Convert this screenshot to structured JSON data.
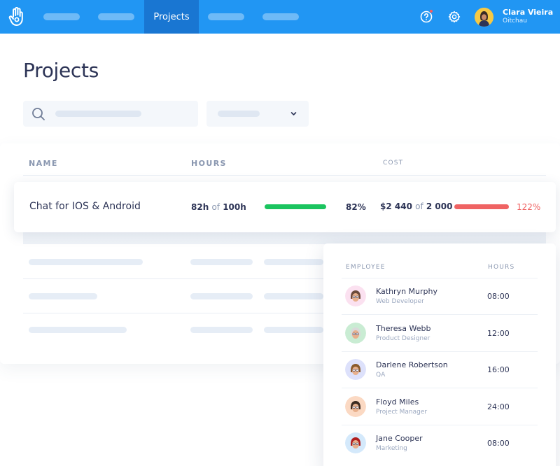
{
  "nav": {
    "active_tab": "Projects",
    "user": {
      "name": "Clara Vieira",
      "org": "Oitchau"
    }
  },
  "page": {
    "title": "Projects"
  },
  "table": {
    "headers": {
      "name": "NAME",
      "hours": "HOURS",
      "cost": "COST"
    },
    "project": {
      "name": "Chat for IOS & Android",
      "hours_used": "82h",
      "of_label": "of",
      "hours_total": "100h",
      "hours_pct": "82%",
      "hours_progress": 0.82,
      "cost_used": "$2 440",
      "cost_total": "2 000",
      "cost_pct": "122%",
      "cost_progress": 1.22
    }
  },
  "employees": {
    "headers": {
      "employee": "EMPLOYEE",
      "hours": "HOURS"
    },
    "rows": [
      {
        "name": "Kathryn Murphy",
        "role": "Web Developer",
        "hours": "08:00",
        "avatar_bg": "#fbe1f0"
      },
      {
        "name": "Theresa Webb",
        "role": "Product Designer",
        "hours": "12:00",
        "avatar_bg": "#c9ecd3"
      },
      {
        "name": "Darlene Robertson",
        "role": "QA",
        "hours": "16:00",
        "avatar_bg": "#dde1fb"
      },
      {
        "name": "Floyd Miles",
        "role": "Project Manager",
        "hours": "24:00",
        "avatar_bg": "#fbd9c3"
      },
      {
        "name": "Jane Cooper",
        "role": "Marketing",
        "hours": "08:00",
        "avatar_bg": "#d4e9fb"
      }
    ]
  },
  "colors": {
    "nav": "#2196f3",
    "nav_active": "#1976d2",
    "progress_ok": "#1bc45f",
    "progress_over": "#ef6363"
  }
}
